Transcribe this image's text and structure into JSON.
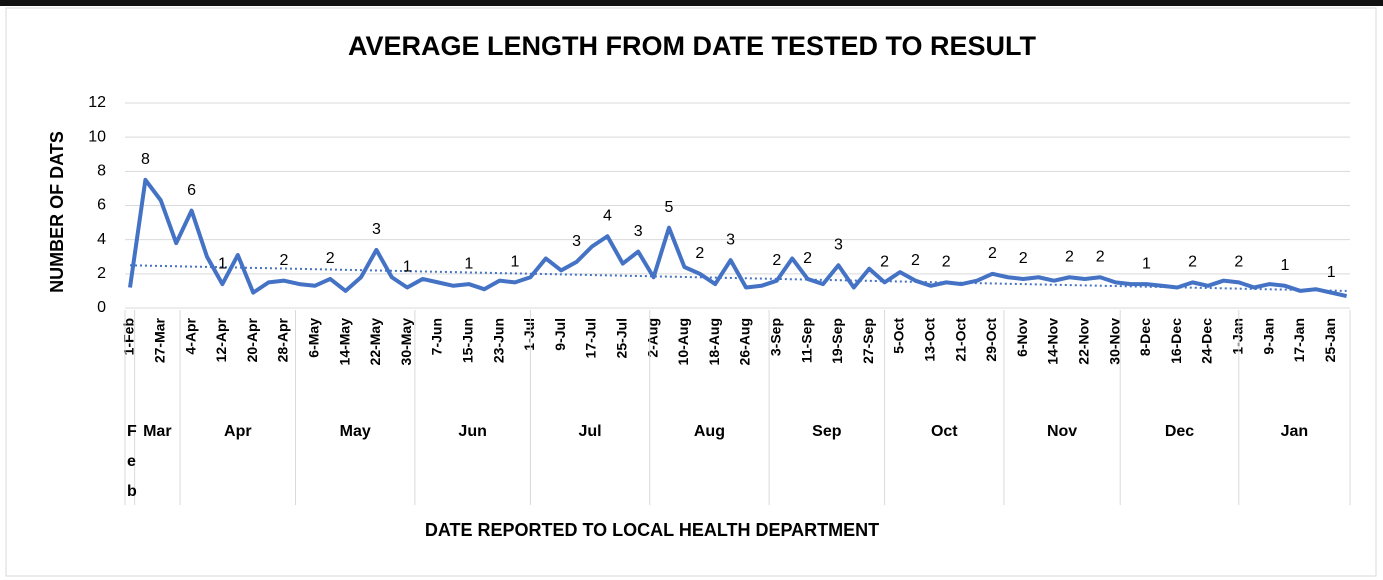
{
  "chart_data": {
    "type": "line",
    "title": "AVERAGE LENGTH FROM DATE TESTED TO RESULT",
    "y_label": "NUMBER OF DATS",
    "x_label": "DATE REPORTED TO LOCAL HEALTH DEPARTMENT",
    "categories": [
      "1-Feb",
      null,
      "27-Mar",
      null,
      "4-Apr",
      null,
      "12-Apr",
      null,
      "20-Apr",
      null,
      "28-Apr",
      null,
      "6-May",
      null,
      "14-May",
      null,
      "22-May",
      null,
      "30-May",
      null,
      "7-Jun",
      null,
      "15-Jun",
      null,
      "23-Jun",
      null,
      "1-Jul",
      null,
      "9-Jul",
      null,
      "17-Jul",
      null,
      "25-Jul",
      null,
      "2-Aug",
      null,
      "10-Aug",
      null,
      "18-Aug",
      null,
      "26-Aug",
      null,
      "3-Sep",
      null,
      "11-Sep",
      null,
      "19-Sep",
      null,
      "27-Sep",
      null,
      "5-Oct",
      null,
      "13-Oct",
      null,
      "21-Oct",
      null,
      "29-Oct",
      null,
      "6-Nov",
      null,
      "14-Nov",
      null,
      "22-Nov",
      null,
      "30-Nov",
      null,
      "8-Dec",
      null,
      "16-Dec",
      null,
      "24-Dec",
      null,
      "1-Jan",
      null,
      "9-Jan",
      null,
      "17-Jan",
      null,
      "25-Jan",
      null
    ],
    "months": [
      "Feb",
      "Mar",
      "Apr",
      "May",
      "Jun",
      "Jul",
      "Aug",
      "Sep",
      "Oct",
      "Nov",
      "Dec",
      "Jan"
    ],
    "series": [
      {
        "name": "Average length",
        "color": "#4472c4",
        "values": [
          1.2,
          7.5,
          6.3,
          3.8,
          5.7,
          3.0,
          1.4,
          3.1,
          0.9,
          1.5,
          1.6,
          1.4,
          1.3,
          1.7,
          1.0,
          1.8,
          3.4,
          1.8,
          1.2,
          1.7,
          1.5,
          1.3,
          1.4,
          1.1,
          1.6,
          1.5,
          1.8,
          2.9,
          2.2,
          2.7,
          3.6,
          4.2,
          2.6,
          3.3,
          1.8,
          4.7,
          2.4,
          2.0,
          1.4,
          2.8,
          1.2,
          1.3,
          1.6,
          2.9,
          1.7,
          1.4,
          2.5,
          1.2,
          2.3,
          1.5,
          2.1,
          1.6,
          1.3,
          1.5,
          1.4,
          1.6,
          2.0,
          1.8,
          1.7,
          1.8,
          1.6,
          1.8,
          1.7,
          1.8,
          1.5,
          1.4,
          1.4,
          1.3,
          1.2,
          1.5,
          1.3,
          1.6,
          1.5,
          1.2,
          1.4,
          1.3,
          1.0,
          1.1,
          0.9,
          0.7
        ],
        "value_labels": [
          null,
          "8",
          null,
          null,
          "6",
          null,
          "1",
          null,
          null,
          null,
          "2",
          null,
          null,
          "2",
          null,
          null,
          "3",
          null,
          "1",
          null,
          null,
          null,
          "1",
          null,
          null,
          "1",
          null,
          null,
          null,
          "3",
          null,
          "4",
          null,
          "3",
          null,
          "5",
          null,
          "2",
          null,
          "3",
          null,
          null,
          "2",
          null,
          "2",
          null,
          "3",
          null,
          null,
          "2",
          null,
          "2",
          null,
          "2",
          null,
          null,
          "2",
          null,
          "2",
          null,
          null,
          "2",
          null,
          "2",
          null,
          null,
          "1",
          null,
          null,
          "2",
          null,
          null,
          "2",
          null,
          null,
          "1",
          null,
          null,
          "1",
          null
        ]
      }
    ],
    "trend": [
      2.5,
      1.0
    ],
    "ylim": [
      0,
      12
    ],
    "yticks": [
      0,
      2,
      4,
      6,
      8,
      10,
      12
    ],
    "grid": true
  }
}
